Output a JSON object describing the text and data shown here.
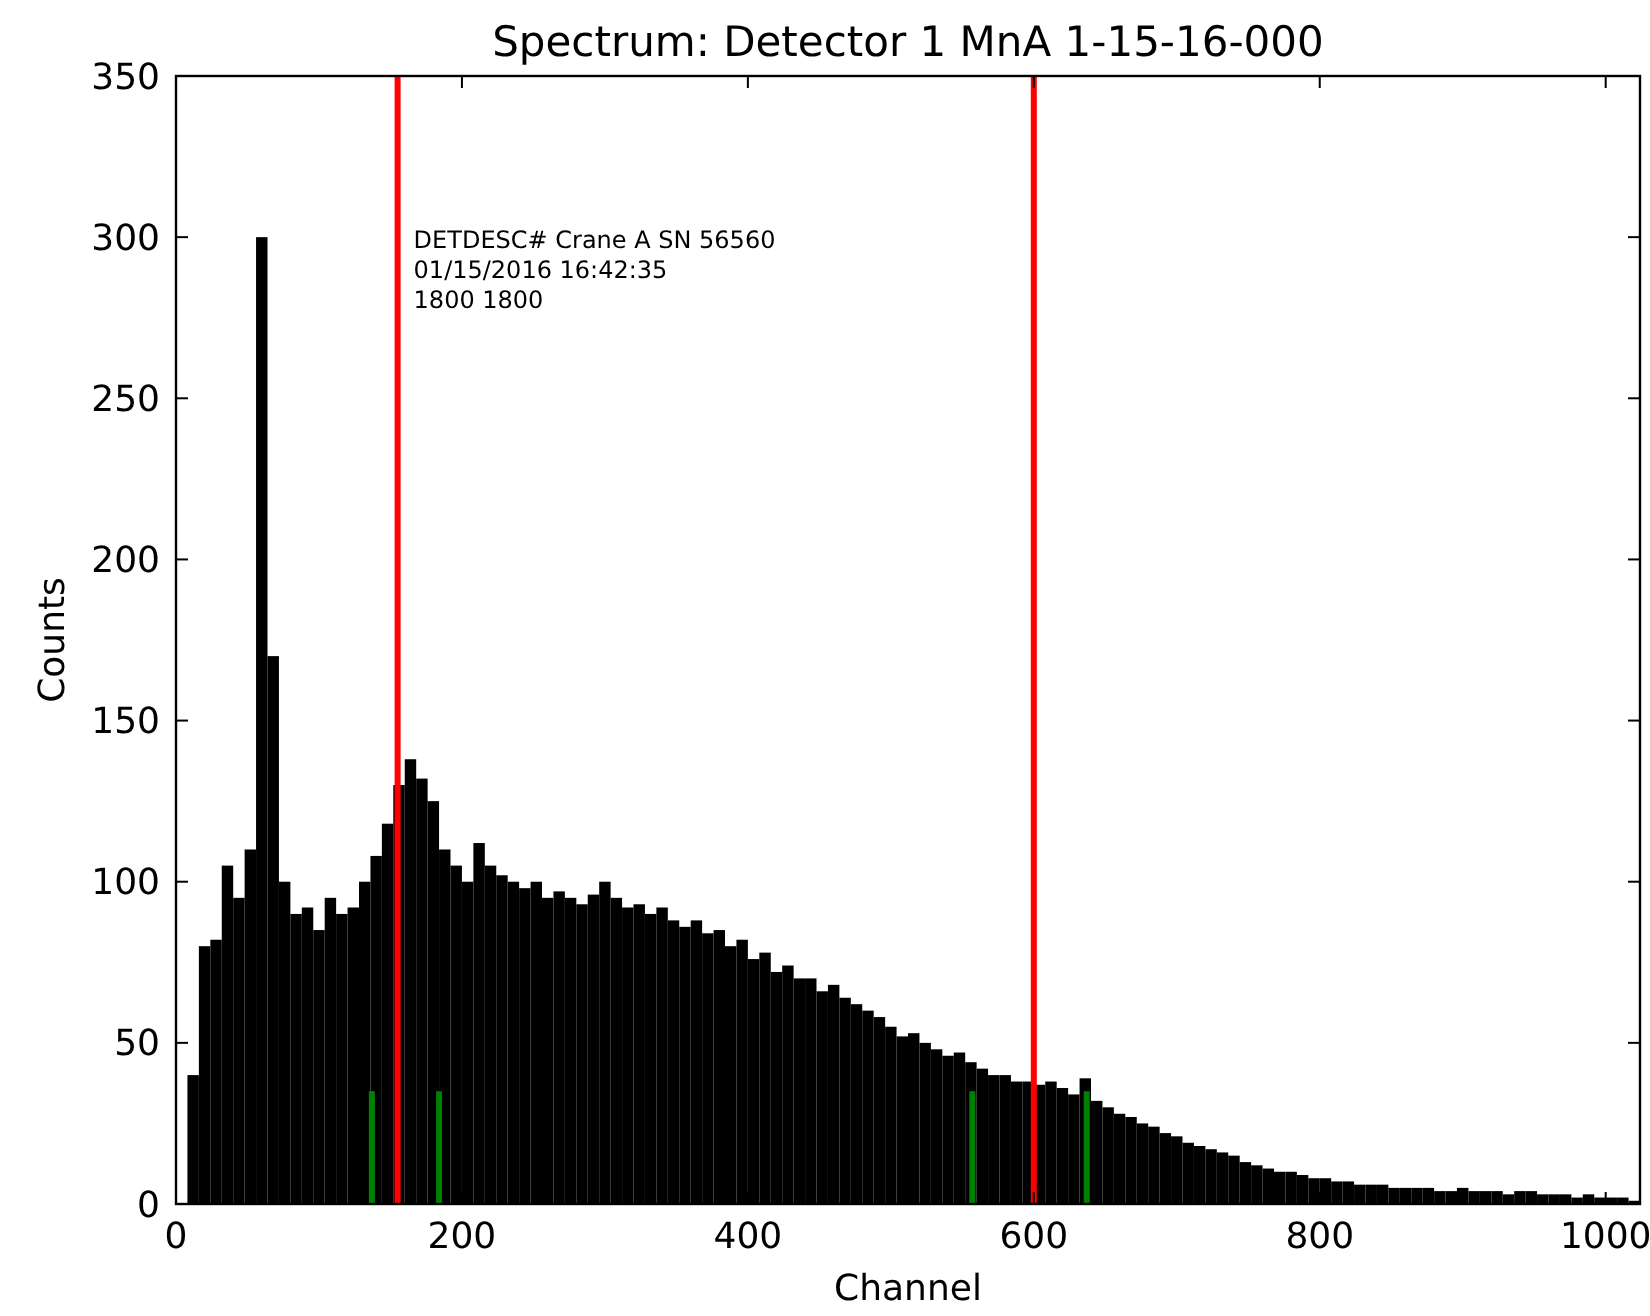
{
  "chart_data": {
    "type": "histogram",
    "title": "Spectrum: Detector 1 MnA 1-15-16-000",
    "xlabel": "Channel",
    "ylabel": "Counts",
    "bins": [
      0,
      8,
      16,
      24,
      32,
      40,
      48,
      56,
      64,
      72,
      80,
      88,
      96,
      104,
      112,
      120,
      128,
      136,
      144,
      152,
      160,
      168,
      176,
      184,
      192,
      200,
      208,
      216,
      224,
      232,
      240,
      248,
      256,
      264,
      272,
      280,
      288,
      296,
      304,
      312,
      320,
      328,
      336,
      344,
      352,
      360,
      368,
      376,
      384,
      392,
      400,
      408,
      416,
      424,
      432,
      440,
      448,
      456,
      464,
      472,
      480,
      488,
      496,
      504,
      512,
      520,
      528,
      536,
      544,
      552,
      560,
      568,
      576,
      584,
      592,
      600,
      608,
      616,
      624,
      632,
      640,
      648,
      656,
      664,
      672,
      680,
      688,
      696,
      704,
      712,
      720,
      728,
      736,
      744,
      752,
      760,
      768,
      776,
      784,
      792,
      800,
      808,
      816,
      824,
      832,
      840,
      848,
      856,
      864,
      872,
      880,
      888,
      896,
      904,
      912,
      920,
      928,
      936,
      944,
      952,
      960,
      968,
      976,
      984,
      992,
      1000,
      1008,
      1016,
      1024
    ],
    "values": [
      0,
      40,
      80,
      82,
      105,
      95,
      110,
      300,
      170,
      100,
      90,
      92,
      85,
      95,
      90,
      92,
      100,
      108,
      118,
      130,
      138,
      132,
      125,
      110,
      105,
      100,
      112,
      105,
      102,
      100,
      98,
      100,
      95,
      97,
      95,
      93,
      96,
      100,
      95,
      92,
      93,
      90,
      92,
      88,
      86,
      88,
      84,
      85,
      80,
      82,
      76,
      78,
      72,
      74,
      70,
      70,
      66,
      68,
      64,
      62,
      60,
      58,
      55,
      52,
      53,
      50,
      48,
      46,
      47,
      44,
      42,
      40,
      40,
      38,
      38,
      37,
      38,
      36,
      34,
      39,
      32,
      30,
      28,
      27,
      25,
      24,
      22,
      21,
      19,
      18,
      17,
      16,
      15,
      13,
      12,
      11,
      10,
      10,
      9,
      8,
      8,
      7,
      7,
      6,
      6,
      6,
      5,
      5,
      5,
      5,
      4,
      4,
      5,
      4,
      4,
      4,
      3,
      4,
      4,
      3,
      3,
      3,
      2,
      3,
      2,
      2,
      2,
      1
    ],
    "color": "#000000",
    "series": [
      {
        "type": "bar",
        "x": [
          137,
          184,
          557,
          637
        ],
        "values": [
          35,
          35,
          35,
          35
        ],
        "color": "#008000"
      }
    ],
    "ref_lines": [
      {
        "axis": "x",
        "value": 155,
        "color": "#ff0000"
      },
      {
        "axis": "x",
        "value": 600,
        "color": "#ff0000"
      }
    ],
    "annotations": [
      "DETDESC# Crane A SN 56560",
      "01/15/2016 16:42:35",
      "1800 1800"
    ],
    "xlim": [
      0,
      1024
    ],
    "ylim": [
      0,
      350
    ],
    "xticks": [
      0,
      200,
      400,
      600,
      800,
      1000
    ],
    "yticks": [
      0,
      50,
      100,
      150,
      200,
      250,
      300,
      350
    ],
    "grid": false
  }
}
